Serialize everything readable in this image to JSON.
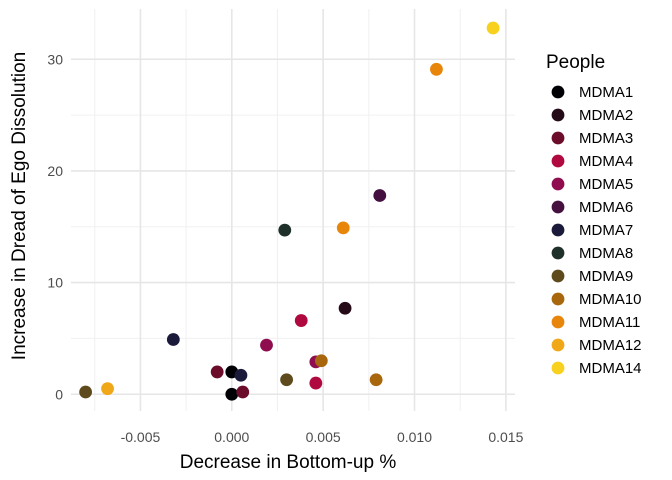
{
  "chart_data": {
    "type": "scatter",
    "xlabel": "Decrease in Bottom-up %",
    "ylabel": "Increase in Dread of Ego Dissolution",
    "xlim": [
      -0.0088,
      0.0155
    ],
    "ylim": [
      -1.5,
      34.5
    ],
    "x_ticks": [
      -0.005,
      0.0,
      0.005,
      0.01,
      0.015
    ],
    "x_tick_labels": [
      "-0.005",
      "0.000",
      "0.005",
      "0.010",
      "0.015"
    ],
    "y_ticks": [
      0,
      10,
      20,
      30
    ],
    "y_tick_labels": [
      "0",
      "10",
      "20",
      "30"
    ],
    "grid": true,
    "legend_position": "right",
    "legend_title": "People",
    "series": [
      {
        "name": "MDMA1",
        "color": "#000004",
        "points": [
          [
            0.0,
            0.0
          ],
          [
            0.0,
            2.0
          ]
        ]
      },
      {
        "name": "MDMA2",
        "color": "#240b17",
        "points": [
          [
            0.0062,
            7.7
          ]
        ]
      },
      {
        "name": "MDMA3",
        "color": "#6b0d2a",
        "points": [
          [
            -0.0008,
            2.0
          ],
          [
            0.0006,
            0.2
          ]
        ]
      },
      {
        "name": "MDMA4",
        "color": "#b0093f",
        "points": [
          [
            0.0038,
            6.6
          ],
          [
            0.0046,
            1.0
          ]
        ]
      },
      {
        "name": "MDMA5",
        "color": "#8f0d4e",
        "points": [
          [
            0.0019,
            4.4
          ],
          [
            0.0046,
            2.9
          ]
        ]
      },
      {
        "name": "MDMA6",
        "color": "#45103f",
        "points": [
          [
            0.0081,
            17.8
          ]
        ]
      },
      {
        "name": "MDMA7",
        "color": "#1b1a3a",
        "points": [
          [
            -0.0032,
            4.9
          ],
          [
            0.0005,
            1.7
          ]
        ]
      },
      {
        "name": "MDMA8",
        "color": "#1f2f2a",
        "points": [
          [
            0.0029,
            14.7
          ]
        ]
      },
      {
        "name": "MDMA9",
        "color": "#5e4a1c",
        "points": [
          [
            -0.008,
            0.2
          ],
          [
            0.003,
            1.3
          ]
        ]
      },
      {
        "name": "MDMA10",
        "color": "#a8660d",
        "points": [
          [
            0.0049,
            3.0
          ],
          [
            0.0079,
            1.3
          ]
        ]
      },
      {
        "name": "MDMA11",
        "color": "#e8860b",
        "points": [
          [
            0.0061,
            14.9
          ],
          [
            0.0112,
            29.1
          ]
        ]
      },
      {
        "name": "MDMA12",
        "color": "#f0a818",
        "points": [
          [
            -0.0068,
            0.5
          ]
        ]
      },
      {
        "name": "MDMA14",
        "color": "#f7d11d",
        "points": [
          [
            0.0143,
            32.8
          ]
        ]
      }
    ]
  }
}
